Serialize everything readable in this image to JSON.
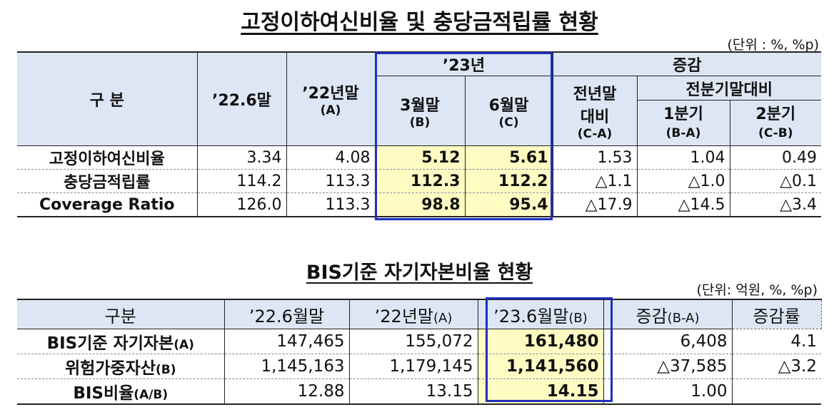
{
  "table1": {
    "title": "고정이하여신비율 및 충당금적립률 현황",
    "unit": "(단위 : %, %p)",
    "headers": {
      "gubun": "구  분",
      "col_226": "’22.6말",
      "col_22_main": "’22년말",
      "col_22_sub": "(A)",
      "group_23": "’23년",
      "col_3m_main": "3월말",
      "col_3m_sub": "(B)",
      "col_6m_main": "6월말",
      "col_6m_sub": "(C)",
      "group_change": "증감",
      "col_prev_main1": "전년말",
      "col_prev_main2": "대비",
      "col_prev_sub": "(C-A)",
      "group_prevq": "전분기말대비",
      "col_q1_main": "1분기",
      "col_q1_sub": "(B-A)",
      "col_q2_main": "2분기",
      "col_q2_sub": "(C-B)"
    },
    "rows": [
      {
        "label": "고정이하여신비율",
        "v226": "3.34",
        "v22": "4.08",
        "v3m": "5.12",
        "v6m": "5.61",
        "vprev": "1.53",
        "vq1": "1.04",
        "vq2": "0.49"
      },
      {
        "label": "충당금적립률",
        "v226": "114.2",
        "v22": "113.3",
        "v3m": "112.3",
        "v6m": "112.2",
        "vprev": "△1.1",
        "vq1": "△1.0",
        "vq2": "△0.1"
      },
      {
        "label": "Coverage  Ratio",
        "v226": "126.0",
        "v22": "113.3",
        "v3m": "98.8",
        "v6m": "95.4",
        "vprev": "△17.9",
        "vq1": "△14.5",
        "vq2": "△3.4"
      }
    ]
  },
  "table2": {
    "title": "BIS기준  자기자본비율  현황",
    "unit": "(단위:  억원,  %,  %p)",
    "headers": {
      "gubun": "구분",
      "col_226": "’22.6월말",
      "col_22_main": "’22년말",
      "col_22_sub": "(A)",
      "col_236_main": "’23.6월말",
      "col_236_sub": "(B)",
      "col_chg_main": "증감",
      "col_chg_sub": "(B-A)",
      "col_rate": "증감률"
    },
    "rows": [
      {
        "label_main": "BIS기준  자기자본",
        "label_sub": "(A)",
        "v226": "147,465",
        "v22": "155,072",
        "v236": "161,480",
        "vchg": "6,408",
        "vrate": "4.1"
      },
      {
        "label_main": "위험가중자산",
        "label_sub": "(B)",
        "v226": "1,145,163",
        "v22": "1,179,145",
        "v236": "1,141,560",
        "vchg": "△37,585",
        "vrate": "△3.2"
      },
      {
        "label_main": "BIS비율",
        "label_sub": "(A/B)",
        "v226": "12.88",
        "v22": "13.15",
        "v236": "14.15",
        "vchg": "1.00",
        "vrate": ""
      }
    ]
  },
  "colors": {
    "header_bg": "#dde6f5",
    "highlight_bg": "#fffbc2",
    "box_border": "#1f2fbd"
  }
}
